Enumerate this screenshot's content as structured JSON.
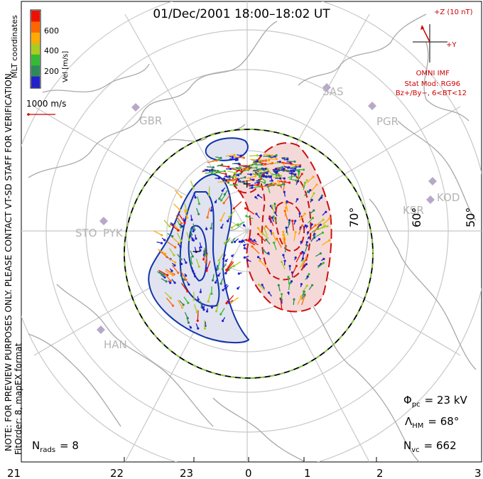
{
  "title": "01/Dec/2001 18:00–18:02 UT",
  "colorbar": {
    "label": "Vel [m/s]",
    "ticks": [
      "600",
      "400",
      "200"
    ],
    "colors": [
      "#2222cc",
      "#2f8a5a",
      "#33bb33",
      "#aacc22",
      "#ffaa00",
      "#ff6600",
      "#ee1100"
    ]
  },
  "coordinate_system": "MLT coordinates",
  "vector_scale": "1000 m/s",
  "side_note": "NOTE: FOR PREVIEW PURPOSES ONLY. PLEASE CONTACT VT-SD STAFF FOR VERIFICATION.",
  "fit_info": "FitOrder: 8, mapEX format",
  "imf": {
    "z_label": "+Z (10 nT)",
    "y_label": "+Y",
    "source": "OMNI IMF",
    "model": "Stat Mod: RG96",
    "conditions": "Bz+/By−, 6<BT<12",
    "color": "#cc0000"
  },
  "stations": [
    "SAS",
    "PGR",
    "GBR",
    "KOD",
    "KSR",
    "STO",
    "PYK",
    "HAN"
  ],
  "latitude_labels": [
    "70°",
    "60°",
    "50°"
  ],
  "mlt_labels": [
    "21",
    "22",
    "23",
    "0",
    "1",
    "2",
    "3"
  ],
  "stats": {
    "phi_pc": {
      "symbol": "Φ",
      "sub": "pc",
      "value": "= 23 kV"
    },
    "lambda_hm": {
      "symbol": "Λ",
      "sub": "HM",
      "value": "= 68°"
    },
    "n_vc": {
      "symbol": "N",
      "sub": "vc",
      "value": "= 662"
    },
    "n_rads": {
      "symbol": "N",
      "sub": "rads",
      "value": "= 8"
    }
  },
  "convection": {
    "dawn_cell_color": "#f5d9d9",
    "dusk_cell_color": "#e1e3f0",
    "dawn_contour_color": "#cc1111",
    "dusk_contour_color": "#1133aa",
    "hmb_color": "#000000",
    "hmb_dash_color": "#88cc33",
    "potential_minimum_marker": "+",
    "potential_maximum_marker": "−"
  },
  "vector_legend_color": "#cc0000"
}
